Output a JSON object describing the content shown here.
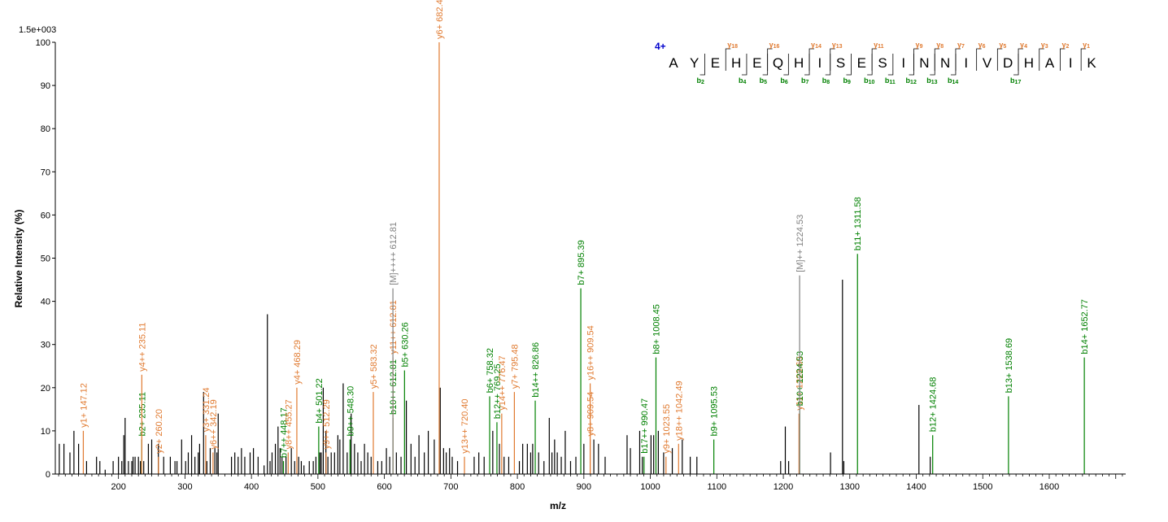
{
  "colors": {
    "b": "#008000",
    "y": "#E07A30",
    "m": "#808080",
    "u": "#000000",
    "charge": "#0000CC"
  },
  "chart_data": {
    "type": "bar",
    "scale_label": "1.5e+003",
    "xlabel": "m/z",
    "ylabel": "Relative  Intensity (%)",
    "xlim": [
      105,
      1715
    ],
    "ylim": [
      0,
      100
    ],
    "x_ticks": [
      200,
      300,
      400,
      500,
      600,
      700,
      800,
      900,
      1000,
      1100,
      1200,
      1300,
      1400,
      1500,
      1600
    ],
    "y_ticks": [
      0,
      10,
      20,
      30,
      40,
      50,
      60,
      70,
      80,
      90,
      100
    ],
    "peptide": {
      "charge": "4+",
      "sequence": [
        "A",
        "Y",
        "E",
        "H",
        "E",
        "Q",
        "H",
        "I",
        "S",
        "E",
        "S",
        "I",
        "N",
        "N",
        "I",
        "V",
        "D",
        "H",
        "A",
        "I",
        "K"
      ],
      "y_ions": [
        {
          "label": "y",
          "sub": "18",
          "after": 3
        },
        {
          "label": "y",
          "sub": "16",
          "after": 5
        },
        {
          "label": "y",
          "sub": "14",
          "after": 7
        },
        {
          "label": "y",
          "sub": "13",
          "after": 8
        },
        {
          "label": "y",
          "sub": "11",
          "after": 10
        },
        {
          "label": "y",
          "sub": "9",
          "after": 12
        },
        {
          "label": "y",
          "sub": "8",
          "after": 13
        },
        {
          "label": "y",
          "sub": "7",
          "after": 14
        },
        {
          "label": "y",
          "sub": "6",
          "after": 15
        },
        {
          "label": "y",
          "sub": "5",
          "after": 16
        },
        {
          "label": "y",
          "sub": "4",
          "after": 17
        },
        {
          "label": "y",
          "sub": "3",
          "after": 18
        },
        {
          "label": "y",
          "sub": "2",
          "after": 19
        },
        {
          "label": "y",
          "sub": "1",
          "after": 20
        }
      ],
      "b_ions": [
        {
          "label": "b",
          "sub": "2",
          "after": 2
        },
        {
          "label": "b",
          "sub": "4",
          "after": 4
        },
        {
          "label": "b",
          "sub": "5",
          "after": 5
        },
        {
          "label": "b",
          "sub": "6",
          "after": 6
        },
        {
          "label": "b",
          "sub": "7",
          "after": 7
        },
        {
          "label": "b",
          "sub": "8",
          "after": 8
        },
        {
          "label": "b",
          "sub": "9",
          "after": 9
        },
        {
          "label": "b",
          "sub": "10",
          "after": 10
        },
        {
          "label": "b",
          "sub": "11",
          "after": 11
        },
        {
          "label": "b",
          "sub": "12",
          "after": 12
        },
        {
          "label": "b",
          "sub": "13",
          "after": 13
        },
        {
          "label": "b",
          "sub": "14",
          "after": 14
        },
        {
          "label": "b",
          "sub": "17",
          "after": 17
        }
      ]
    },
    "annotated_peaks": [
      {
        "mz": 147.12,
        "i": 10,
        "label": "y1+ 147.12",
        "kind": "y"
      },
      {
        "mz": 235.11,
        "i": 8,
        "label": "b2+ 235.11",
        "kind": "b"
      },
      {
        "mz": 235.11,
        "i": 23,
        "label": "y4++ 235.11",
        "kind": "y"
      },
      {
        "mz": 260.2,
        "i": 4,
        "label": "y2+ 260.20",
        "kind": "y"
      },
      {
        "mz": 331.24,
        "i": 9,
        "label": "y3+ 331.24",
        "kind": "y"
      },
      {
        "mz": 342.19,
        "i": 5,
        "label": "y6++ 342.19",
        "kind": "y"
      },
      {
        "mz": 448.17,
        "i": 3,
        "label": "b7++ 448.17",
        "kind": "b"
      },
      {
        "mz": 455.27,
        "i": 5,
        "label": "y8++ 455.27",
        "kind": "y"
      },
      {
        "mz": 468.29,
        "i": 20,
        "label": "y4+ 468.29",
        "kind": "y"
      },
      {
        "mz": 501.22,
        "i": 11,
        "label": "b4+ 501.22",
        "kind": "b"
      },
      {
        "mz": 512.29,
        "i": 5,
        "label": "y9++ 512.29",
        "kind": "y"
      },
      {
        "mz": 548.3,
        "i": 8,
        "label": "b9++ 548.30",
        "kind": "b"
      },
      {
        "mz": 583.32,
        "i": 19,
        "label": "y5+ 583.32",
        "kind": "y"
      },
      {
        "mz": 612.81,
        "i": 13,
        "label": "b10++ 612.81",
        "kind": "b"
      },
      {
        "mz": 612.81,
        "i": 27,
        "label": "y11++ 612.81",
        "kind": "y"
      },
      {
        "mz": 612.81,
        "i": 43,
        "label": "[M]++++ 612.81",
        "kind": "m"
      },
      {
        "mz": 630.26,
        "i": 24,
        "label": "b5+ 630.26",
        "kind": "b"
      },
      {
        "mz": 682.4,
        "i": 100,
        "label": "y6+ 682.40",
        "kind": "y"
      },
      {
        "mz": 720.4,
        "i": 4,
        "label": "y13++ 720.40",
        "kind": "y"
      },
      {
        "mz": 758.32,
        "i": 18,
        "label": "b6+ 758.32",
        "kind": "b"
      },
      {
        "mz": 769.25,
        "i": 12,
        "label": "b12++ 769.25",
        "kind": "b"
      },
      {
        "mz": 776.47,
        "i": 14,
        "label": "y14++ 776.47",
        "kind": "y"
      },
      {
        "mz": 795.48,
        "i": 19,
        "label": "y7+ 795.48",
        "kind": "y"
      },
      {
        "mz": 826.86,
        "i": 17,
        "label": "b14++ 826.86",
        "kind": "b"
      },
      {
        "mz": 895.39,
        "i": 43,
        "label": "b7+ 895.39",
        "kind": "b"
      },
      {
        "mz": 909.54,
        "i": 8,
        "label": "y8+ 909.54",
        "kind": "y"
      },
      {
        "mz": 909.54,
        "i": 21,
        "label": "y16++ 909.54",
        "kind": "y"
      },
      {
        "mz": 990.47,
        "i": 4,
        "label": "b17++ 990.47",
        "kind": "b"
      },
      {
        "mz": 1008.45,
        "i": 27,
        "label": "b8+ 1008.45",
        "kind": "b"
      },
      {
        "mz": 1023.55,
        "i": 4,
        "label": "y9+ 1023.55",
        "kind": "y"
      },
      {
        "mz": 1042.49,
        "i": 7,
        "label": "y18++ 1042.49",
        "kind": "y"
      },
      {
        "mz": 1095.53,
        "i": 8,
        "label": "b9+ 1095.53",
        "kind": "b"
      },
      {
        "mz": 1223.6,
        "i": 14,
        "label": "y11+ 1223.60",
        "kind": "y"
      },
      {
        "mz": 1224.53,
        "i": 15,
        "label": "b10+ 1224.53",
        "kind": "b"
      },
      {
        "mz": 1224.53,
        "i": 46,
        "label": "[M]++ 1224.53",
        "kind": "m"
      },
      {
        "mz": 1311.58,
        "i": 51,
        "label": "b11+ 1311.58",
        "kind": "b"
      },
      {
        "mz": 1424.68,
        "i": 9,
        "label": "b12+ 1424.68",
        "kind": "b"
      },
      {
        "mz": 1538.69,
        "i": 18,
        "label": "b13+ 1538.69",
        "kind": "b"
      },
      {
        "mz": 1652.77,
        "i": 27,
        "label": "b14+ 1652.77",
        "kind": "b"
      }
    ],
    "unlabeled_peaks": [
      [
        111,
        7
      ],
      [
        118,
        7
      ],
      [
        127,
        5
      ],
      [
        133,
        10
      ],
      [
        140,
        7
      ],
      [
        152,
        3
      ],
      [
        167,
        4
      ],
      [
        172,
        3
      ],
      [
        180,
        1
      ],
      [
        192,
        3
      ],
      [
        200,
        4
      ],
      [
        205,
        3
      ],
      [
        208,
        9
      ],
      [
        210,
        13
      ],
      [
        215,
        3
      ],
      [
        220,
        3
      ],
      [
        222,
        4
      ],
      [
        225,
        4
      ],
      [
        230,
        4
      ],
      [
        233,
        3
      ],
      [
        238,
        3
      ],
      [
        245,
        7
      ],
      [
        250,
        8
      ],
      [
        260,
        7
      ],
      [
        268,
        4
      ],
      [
        278,
        4
      ],
      [
        285,
        3
      ],
      [
        288,
        3
      ],
      [
        295,
        8
      ],
      [
        301,
        3
      ],
      [
        305,
        5
      ],
      [
        310,
        9
      ],
      [
        315,
        4
      ],
      [
        320,
        5
      ],
      [
        322,
        7
      ],
      [
        328,
        19
      ],
      [
        333,
        3
      ],
      [
        338,
        6
      ],
      [
        345,
        6
      ],
      [
        348,
        5
      ],
      [
        350,
        14
      ],
      [
        370,
        4
      ],
      [
        375,
        5
      ],
      [
        380,
        4
      ],
      [
        385,
        6
      ],
      [
        390,
        4
      ],
      [
        398,
        5
      ],
      [
        403,
        6
      ],
      [
        410,
        4
      ],
      [
        419,
        2
      ],
      [
        424,
        37
      ],
      [
        428,
        3
      ],
      [
        431,
        5
      ],
      [
        436,
        7
      ],
      [
        440,
        11
      ],
      [
        443,
        6
      ],
      [
        446,
        4
      ],
      [
        452,
        4
      ],
      [
        460,
        6
      ],
      [
        465,
        3
      ],
      [
        471,
        4
      ],
      [
        475,
        3
      ],
      [
        479,
        2
      ],
      [
        487,
        3
      ],
      [
        493,
        3
      ],
      [
        497,
        4
      ],
      [
        503,
        5
      ],
      [
        505,
        5
      ],
      [
        508,
        20
      ],
      [
        512,
        10
      ],
      [
        515,
        4
      ],
      [
        520,
        5
      ],
      [
        525,
        5
      ],
      [
        530,
        9
      ],
      [
        533,
        8
      ],
      [
        538,
        21
      ],
      [
        544,
        5
      ],
      [
        550,
        14
      ],
      [
        555,
        7
      ],
      [
        560,
        5
      ],
      [
        565,
        3
      ],
      [
        570,
        7
      ],
      [
        575,
        5
      ],
      [
        580,
        4
      ],
      [
        590,
        3
      ],
      [
        596,
        3
      ],
      [
        603,
        6
      ],
      [
        608,
        4
      ],
      [
        618,
        5
      ],
      [
        625,
        4
      ],
      [
        633,
        17
      ],
      [
        640,
        7
      ],
      [
        646,
        4
      ],
      [
        652,
        9
      ],
      [
        660,
        5
      ],
      [
        666,
        10
      ],
      [
        675,
        8
      ],
      [
        684,
        20
      ],
      [
        689,
        6
      ],
      [
        693,
        5
      ],
      [
        698,
        6
      ],
      [
        702,
        4
      ],
      [
        710,
        3
      ],
      [
        735,
        4
      ],
      [
        742,
        5
      ],
      [
        750,
        4
      ],
      [
        763,
        10
      ],
      [
        773,
        7
      ],
      [
        780,
        4
      ],
      [
        787,
        4
      ],
      [
        803,
        3
      ],
      [
        808,
        7
      ],
      [
        815,
        7
      ],
      [
        820,
        5
      ],
      [
        823,
        7
      ],
      [
        832,
        5
      ],
      [
        840,
        3
      ],
      [
        848,
        13
      ],
      [
        852,
        5
      ],
      [
        856,
        8
      ],
      [
        860,
        5
      ],
      [
        866,
        4
      ],
      [
        872,
        10
      ],
      [
        880,
        3
      ],
      [
        888,
        4
      ],
      [
        900,
        7
      ],
      [
        915,
        8
      ],
      [
        922,
        7
      ],
      [
        932,
        4
      ],
      [
        965,
        9
      ],
      [
        970,
        6
      ],
      [
        984,
        10
      ],
      [
        988,
        4
      ],
      [
        1001,
        9
      ],
      [
        1005,
        9
      ],
      [
        1012,
        10
      ],
      [
        1020,
        5
      ],
      [
        1033,
        6
      ],
      [
        1048,
        8
      ],
      [
        1060,
        4
      ],
      [
        1070,
        4
      ],
      [
        1196,
        3
      ],
      [
        1203,
        11
      ],
      [
        1208,
        3
      ],
      [
        1271,
        5
      ],
      [
        1289,
        45
      ],
      [
        1291,
        3
      ],
      [
        1404,
        16
      ],
      [
        1421,
        4
      ]
    ]
  }
}
